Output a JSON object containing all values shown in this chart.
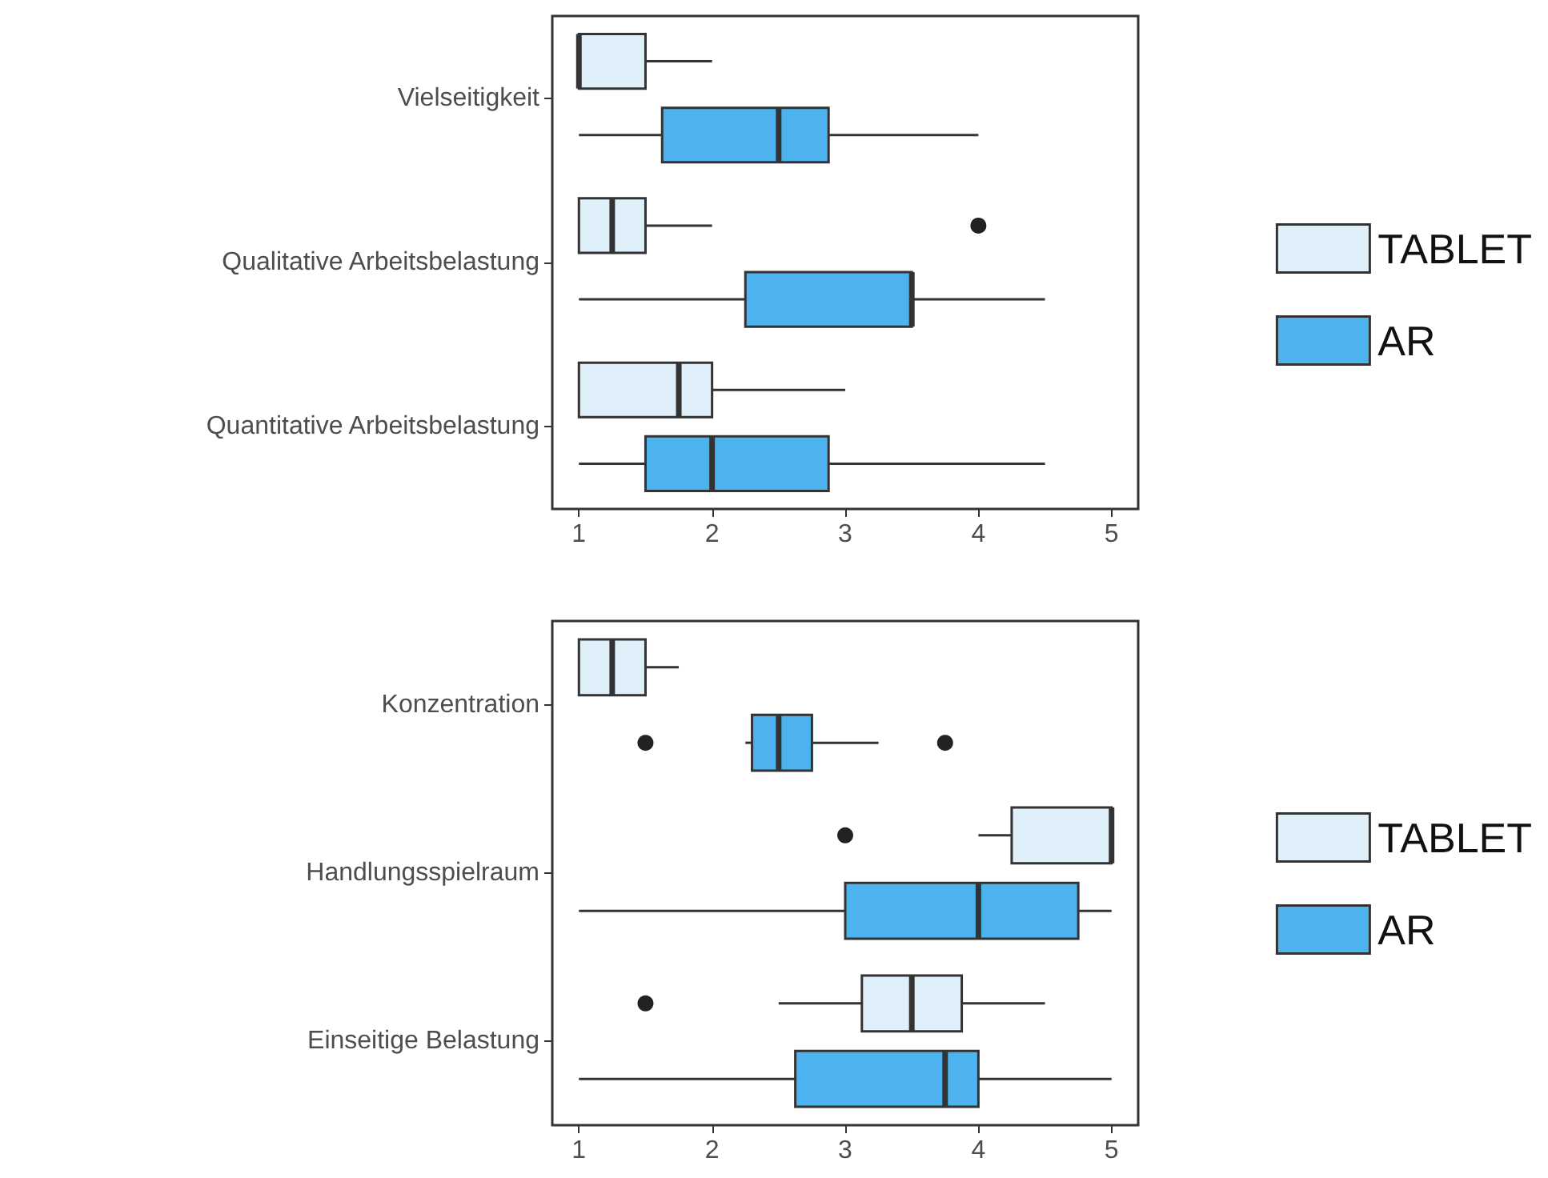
{
  "chart_data": [
    {
      "type": "box",
      "orientation": "horizontal",
      "categories": [
        "Vielseitigkeit",
        "Qualitative Arbeitsbelastung",
        "Quantitative Arbeitsbelastung"
      ],
      "xlim": [
        0.8,
        5.2
      ],
      "xticks": [
        1,
        2,
        3,
        4,
        5
      ],
      "grid": false,
      "legend": "right",
      "series": [
        {
          "name": "TABLET",
          "color": "#e0f0fb",
          "boxes": [
            {
              "low": 1,
              "q1": 1,
              "median": 1,
              "q3": 1.5,
              "high": 2
            },
            {
              "low": 1,
              "q1": 1,
              "median": 1.25,
              "q3": 1.5,
              "high": 2,
              "outliers": [
                4
              ]
            },
            {
              "low": 1,
              "q1": 1,
              "median": 1.75,
              "q3": 2,
              "high": 3
            }
          ]
        },
        {
          "name": "AR",
          "color": "#4db3ef",
          "boxes": [
            {
              "low": 1,
              "q1": 1.625,
              "median": 2.5,
              "q3": 2.875,
              "high": 4
            },
            {
              "low": 1,
              "q1": 2.25,
              "median": 3.5,
              "q3": 3.5,
              "high": 4.5
            },
            {
              "low": 1,
              "q1": 1.5,
              "median": 2,
              "q3": 2.875,
              "high": 4.5
            }
          ]
        }
      ]
    },
    {
      "type": "box",
      "orientation": "horizontal",
      "categories": [
        "Konzentration",
        "Handlungsspielraum",
        "Einseitige Belastung"
      ],
      "xlim": [
        0.8,
        5.2
      ],
      "xticks": [
        1,
        2,
        3,
        4,
        5
      ],
      "grid": false,
      "legend": "right",
      "series": [
        {
          "name": "TABLET",
          "color": "#e0f0fb",
          "boxes": [
            {
              "low": 1,
              "q1": 1,
              "median": 1.25,
              "q3": 1.5,
              "high": 1.75
            },
            {
              "low": 4,
              "q1": 4.25,
              "median": 5,
              "q3": 5,
              "high": 5,
              "outliers": [
                3
              ]
            },
            {
              "low": 2.5,
              "q1": 3.125,
              "median": 3.5,
              "q3": 3.875,
              "high": 4.5,
              "outliers": [
                1.5
              ]
            }
          ]
        },
        {
          "name": "AR",
          "color": "#4db3ef",
          "boxes": [
            {
              "low": 2.25,
              "q1": 2.3,
              "median": 2.5,
              "q3": 2.75,
              "high": 3.25,
              "outliers": [
                1.5,
                3.75
              ]
            },
            {
              "low": 1,
              "q1": 3,
              "median": 4,
              "q3": 4.75,
              "high": 5
            },
            {
              "low": 1,
              "q1": 2.625,
              "median": 3.75,
              "q3": 4,
              "high": 5
            }
          ]
        }
      ]
    }
  ]
}
